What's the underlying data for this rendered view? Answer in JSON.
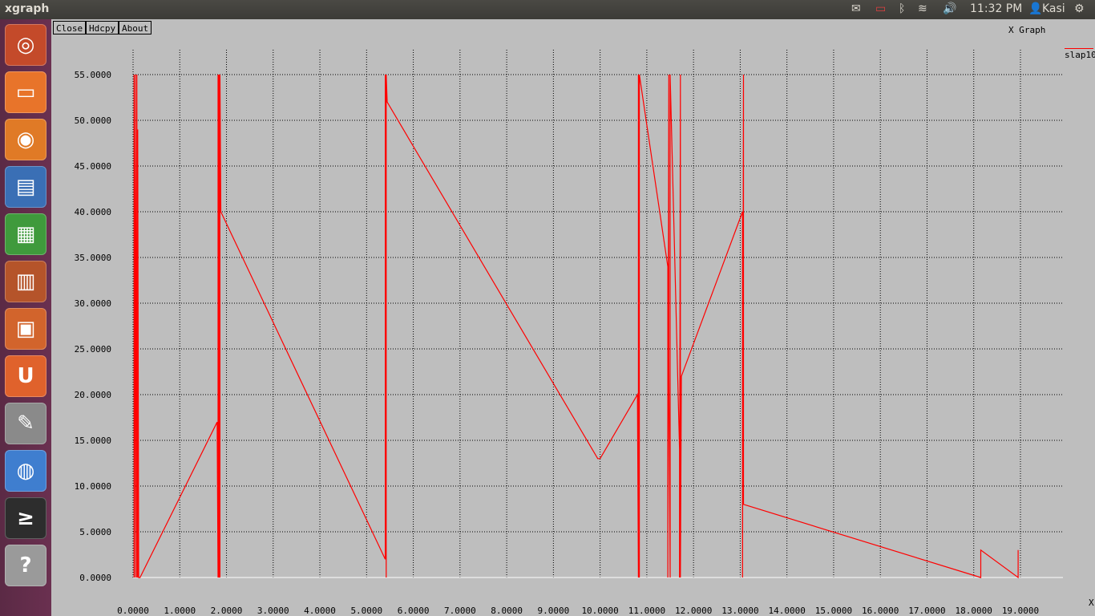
{
  "topbar": {
    "app_title": "xgraph",
    "clock": "11:32 PM",
    "user": "Kasi"
  },
  "launcher": {
    "items": [
      {
        "name": "ubuntu-dash-icon",
        "color": "#c44a2a"
      },
      {
        "name": "files-icon",
        "color": "#e8742a"
      },
      {
        "name": "firefox-icon",
        "color": "#e07a26"
      },
      {
        "name": "writer-icon",
        "color": "#3a6fb5"
      },
      {
        "name": "calc-icon",
        "color": "#3f9a3c"
      },
      {
        "name": "impress-icon",
        "color": "#b5542a"
      },
      {
        "name": "software-center-icon",
        "color": "#d2642c"
      },
      {
        "name": "ubuntu-one-icon",
        "color": "#e0622c"
      },
      {
        "name": "system-settings-icon",
        "color": "#8a8a8a"
      },
      {
        "name": "chromium-icon",
        "color": "#3f7ecf"
      },
      {
        "name": "terminal-icon",
        "color": "#2d2d2d"
      },
      {
        "name": "help-icon",
        "color": "#9a9a9a"
      }
    ]
  },
  "toolbar": {
    "close_label": "Close",
    "hdcpy_label": "Hdcpy",
    "about_label": "About"
  },
  "graph": {
    "title": "X Graph",
    "legend": "slap10",
    "x_unit": "X"
  },
  "chart_data": {
    "type": "line",
    "title": "X Graph",
    "xlim": [
      0,
      19
    ],
    "ylim": [
      0,
      55
    ],
    "x_ticks": [
      "0.0000",
      "1.0000",
      "2.0000",
      "3.0000",
      "4.0000",
      "5.0000",
      "6.0000",
      "7.0000",
      "8.0000",
      "9.0000",
      "10.0000",
      "11.0000",
      "12.0000",
      "13.0000",
      "14.0000",
      "15.0000",
      "16.0000",
      "17.0000",
      "18.0000",
      "19.0000"
    ],
    "y_ticks_left": [
      {
        "v": 0,
        "label": "0.0000"
      },
      {
        "v": 5,
        "label": "5.0000"
      },
      {
        "v": 10,
        "label": "10.0000"
      },
      {
        "v": 15,
        "label": "15.0000"
      },
      {
        "v": 20,
        "label": "20.0000"
      },
      {
        "v": 25,
        "label": "25.0000"
      },
      {
        "v": 30,
        "label": "30.0000"
      },
      {
        "v": 35,
        "label": "35.0000"
      },
      {
        "v": 40,
        "label": "40.0000"
      },
      {
        "v": 45,
        "label": "45.0000"
      },
      {
        "v": 50,
        "label": "50.0000"
      },
      {
        "v": 55,
        "label": "55.0000"
      }
    ],
    "series": [
      {
        "name": "slap10",
        "color": "#ff0000",
        "x": [
          0.02,
          0.02,
          0.05,
          0.05,
          0.08,
          0.08,
          0.1,
          0.1,
          0.12,
          0.15,
          1.8,
          1.82,
          1.82,
          1.84,
          1.84,
          1.86,
          1.86,
          1.88,
          5.4,
          5.4,
          5.42,
          5.42,
          5.44,
          9.95,
          10.0,
          10.8,
          10.82,
          10.82,
          10.84,
          10.84,
          11.45,
          11.45,
          11.47,
          11.47,
          11.5,
          11.5,
          11.7,
          11.7,
          11.72,
          11.72,
          11.74,
          13.05,
          13.05,
          13.07,
          13.07,
          18.15,
          18.15,
          18.95,
          18.95
        ],
        "y": [
          0,
          55,
          0,
          55,
          0,
          55,
          0,
          49,
          0,
          0,
          17,
          0,
          55,
          0,
          55,
          0,
          55,
          40,
          2,
          55,
          0,
          55,
          52,
          13,
          13,
          20,
          0,
          55,
          0,
          55,
          34,
          0,
          55,
          24,
          0,
          55,
          14,
          0,
          55,
          0,
          22,
          40,
          0,
          55,
          8,
          0,
          3,
          0,
          3
        ]
      }
    ],
    "grid": true,
    "legend_position": "top-right"
  }
}
